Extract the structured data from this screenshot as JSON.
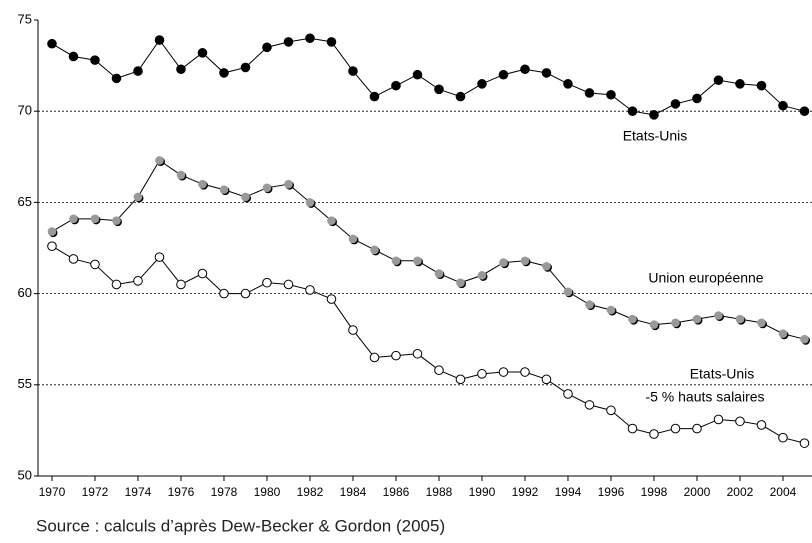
{
  "chart_data": {
    "type": "line",
    "x": [
      1970,
      1971,
      1972,
      1973,
      1974,
      1975,
      1976,
      1977,
      1978,
      1979,
      1980,
      1981,
      1982,
      1983,
      1984,
      1985,
      1986,
      1987,
      1988,
      1989,
      1990,
      1991,
      1992,
      1993,
      1994,
      1995,
      1996,
      1997,
      1998,
      1999,
      2000,
      2001,
      2002,
      2003,
      2004,
      2005
    ],
    "series": [
      {
        "color": "#000000",
        "values": [
          73.7,
          73.0,
          72.8,
          71.8,
          72.2,
          73.9,
          72.3,
          73.2,
          72.1,
          72.4,
          73.5,
          73.8,
          74.0,
          73.8,
          72.2,
          70.8,
          71.4,
          72.0,
          71.2,
          70.8,
          71.5,
          72.0,
          72.3,
          72.1,
          71.5,
          71.0,
          70.9,
          70.0,
          69.8,
          70.4,
          70.7,
          71.7,
          71.5,
          71.4,
          70.3,
          70.0
        ]
      },
      {
        "color": "#999999",
        "values": [
          63.4,
          64.1,
          64.1,
          64.0,
          65.3,
          67.3,
          66.5,
          66.0,
          65.7,
          65.3,
          65.8,
          66.0,
          65.0,
          64.0,
          63.0,
          62.4,
          61.8,
          61.8,
          61.1,
          60.6,
          61.0,
          61.7,
          61.8,
          61.5,
          60.1,
          59.4,
          59.1,
          58.6,
          58.3,
          58.4,
          58.6,
          58.8,
          58.6,
          58.4,
          57.8,
          57.5
        ]
      },
      {
        "color": "#ffffff",
        "values": [
          62.6,
          61.9,
          61.6,
          60.5,
          60.7,
          62.0,
          60.5,
          61.1,
          60.0,
          60.0,
          60.6,
          60.5,
          60.2,
          59.7,
          58.0,
          56.5,
          56.6,
          56.7,
          55.8,
          55.3,
          55.6,
          55.7,
          55.7,
          55.3,
          54.5,
          53.9,
          53.6,
          52.6,
          52.3,
          52.6,
          52.6,
          53.1,
          53.0,
          52.8,
          52.1,
          51.8
        ]
      }
    ],
    "annotations": [
      "Etats-Unis",
      "Union européenne",
      "Etats-Unis",
      "-5 % hauts salaires"
    ],
    "source": "Source : calculs d’après Dew-Becker & Gordon (2005)",
    "xlim": [
      1969.35,
      2005.35
    ],
    "xticks": [
      1970,
      1972,
      1974,
      1976,
      1978,
      1980,
      1982,
      1984,
      1986,
      1988,
      1990,
      1992,
      1994,
      1996,
      1998,
      2000,
      2002,
      2004
    ],
    "ylim": [
      50,
      75
    ],
    "yticks": [
      50,
      55,
      60,
      65,
      70,
      75
    ],
    "grid": true
  }
}
